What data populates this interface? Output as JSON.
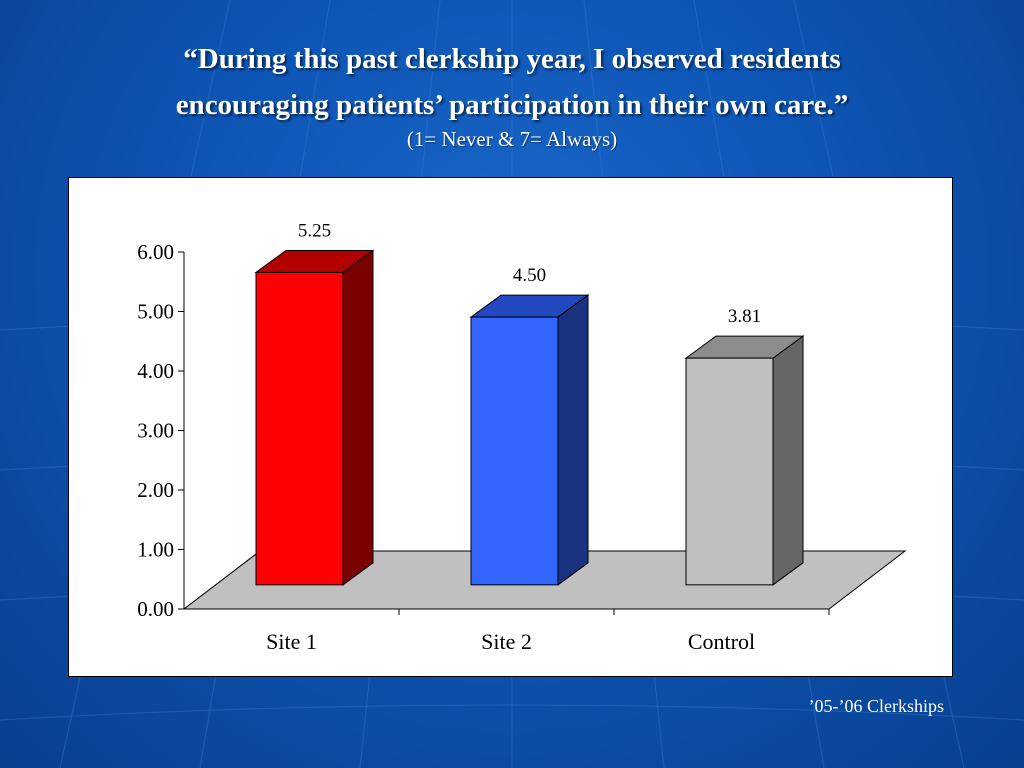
{
  "slide": {
    "title_line1": "“During this past clerkship year, I observed residents",
    "title_line2": "encouraging patients’ participation in their own care.”",
    "subtitle": "(1= Never & 7= Always)",
    "footer": "’05-’06 Clerkships"
  },
  "chart_data": {
    "type": "bar",
    "categories": [
      "Site 1",
      "Site 2",
      "Control"
    ],
    "values": [
      5.25,
      4.5,
      3.81
    ],
    "value_labels": [
      "5.25",
      "4.50",
      "3.81"
    ],
    "ylim": [
      0,
      6
    ],
    "yticks": [
      "0.00",
      "1.00",
      "2.00",
      "3.00",
      "4.00",
      "5.00",
      "6.00"
    ],
    "bar_colors": [
      {
        "front": "#ff0000",
        "top": "#b30000",
        "side": "#7a0000"
      },
      {
        "front": "#3366ff",
        "top": "#2248c0",
        "side": "#1a3380"
      },
      {
        "front": "#c0c0c0",
        "top": "#8c8c8c",
        "side": "#666666"
      }
    ],
    "floor_color": "#c0c0c0",
    "grid": false,
    "three_d": true
  }
}
